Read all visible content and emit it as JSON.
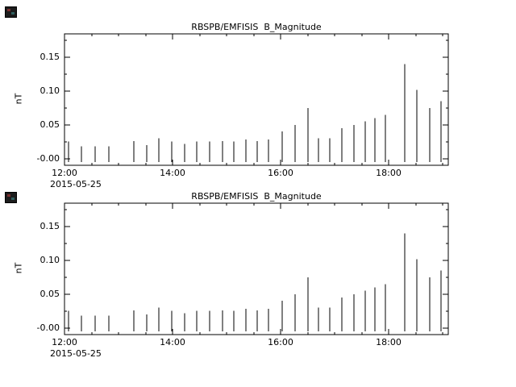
{
  "window": {
    "background": "#ffffff"
  },
  "icons": [
    {
      "name": "window-icon-top"
    },
    {
      "name": "window-icon-bottom"
    }
  ],
  "chart_data": [
    {
      "type": "line",
      "style": "vertical-spikes",
      "title": "RBSPB/EMFISIS  B_Magnitude",
      "xlabel": "",
      "ylabel": "nT",
      "date_label": "2015-05-25",
      "xlim": [
        12.0,
        19.1
      ],
      "ylim": [
        -0.01,
        0.185
      ],
      "baseline": -0.005,
      "grid": false,
      "frame": "box-with-inward-ticks",
      "xticks": [
        {
          "value": 12.0,
          "label": "12:00"
        },
        {
          "value": 14.0,
          "label": "14:00"
        },
        {
          "value": 16.0,
          "label": "16:00"
        },
        {
          "value": 18.0,
          "label": "18:00"
        }
      ],
      "yticks": [
        {
          "value": 0.0,
          "label": "-0.00"
        },
        {
          "value": 0.05,
          "label": "0.05"
        },
        {
          "value": 0.1,
          "label": "0.10"
        },
        {
          "value": 0.15,
          "label": "0.15"
        }
      ],
      "minor_x_step": 0.5,
      "minor_y_step": 0.025,
      "series": [
        {
          "name": "B_Magnitude",
          "x": [
            12.08,
            12.32,
            12.57,
            12.82,
            13.28,
            13.52,
            13.75,
            13.98,
            14.22,
            14.45,
            14.68,
            14.92,
            15.13,
            15.35,
            15.57,
            15.78,
            16.02,
            16.27,
            16.5,
            16.7,
            16.9,
            17.13,
            17.35,
            17.57,
            17.75,
            17.93,
            18.3,
            18.52,
            18.75,
            18.97
          ],
          "values": [
            0.025,
            0.018,
            0.018,
            0.018,
            0.026,
            0.02,
            0.03,
            0.025,
            0.022,
            0.025,
            0.025,
            0.026,
            0.025,
            0.028,
            0.026,
            0.028,
            0.04,
            0.05,
            0.075,
            0.03,
            0.03,
            0.045,
            0.05,
            0.055,
            0.06,
            0.065,
            0.14,
            0.102,
            0.075,
            0.085
          ]
        }
      ]
    },
    {
      "type": "line",
      "style": "vertical-spikes",
      "title": "RBSPB/EMFISIS  B_Magnitude",
      "xlabel": "",
      "ylabel": "nT",
      "date_label": "2015-05-25",
      "xlim": [
        12.0,
        19.1
      ],
      "ylim": [
        -0.01,
        0.185
      ],
      "baseline": -0.005,
      "grid": false,
      "frame": "box-with-inward-ticks",
      "xticks": [
        {
          "value": 12.0,
          "label": "12:00"
        },
        {
          "value": 14.0,
          "label": "14:00"
        },
        {
          "value": 16.0,
          "label": "16:00"
        },
        {
          "value": 18.0,
          "label": "18:00"
        }
      ],
      "yticks": [
        {
          "value": 0.0,
          "label": "-0.00"
        },
        {
          "value": 0.05,
          "label": "0.05"
        },
        {
          "value": 0.1,
          "label": "0.10"
        },
        {
          "value": 0.15,
          "label": "0.15"
        }
      ],
      "minor_x_step": 0.5,
      "minor_y_step": 0.025,
      "series": [
        {
          "name": "B_Magnitude",
          "x": [
            12.08,
            12.32,
            12.57,
            12.82,
            13.28,
            13.52,
            13.75,
            13.98,
            14.22,
            14.45,
            14.68,
            14.92,
            15.13,
            15.35,
            15.57,
            15.78,
            16.02,
            16.27,
            16.5,
            16.7,
            16.9,
            17.13,
            17.35,
            17.57,
            17.75,
            17.93,
            18.3,
            18.52,
            18.75,
            18.97
          ],
          "values": [
            0.025,
            0.018,
            0.018,
            0.018,
            0.026,
            0.02,
            0.03,
            0.025,
            0.022,
            0.025,
            0.025,
            0.026,
            0.025,
            0.028,
            0.026,
            0.028,
            0.04,
            0.05,
            0.075,
            0.03,
            0.03,
            0.045,
            0.05,
            0.055,
            0.06,
            0.065,
            0.14,
            0.102,
            0.075,
            0.085
          ]
        }
      ]
    }
  ]
}
